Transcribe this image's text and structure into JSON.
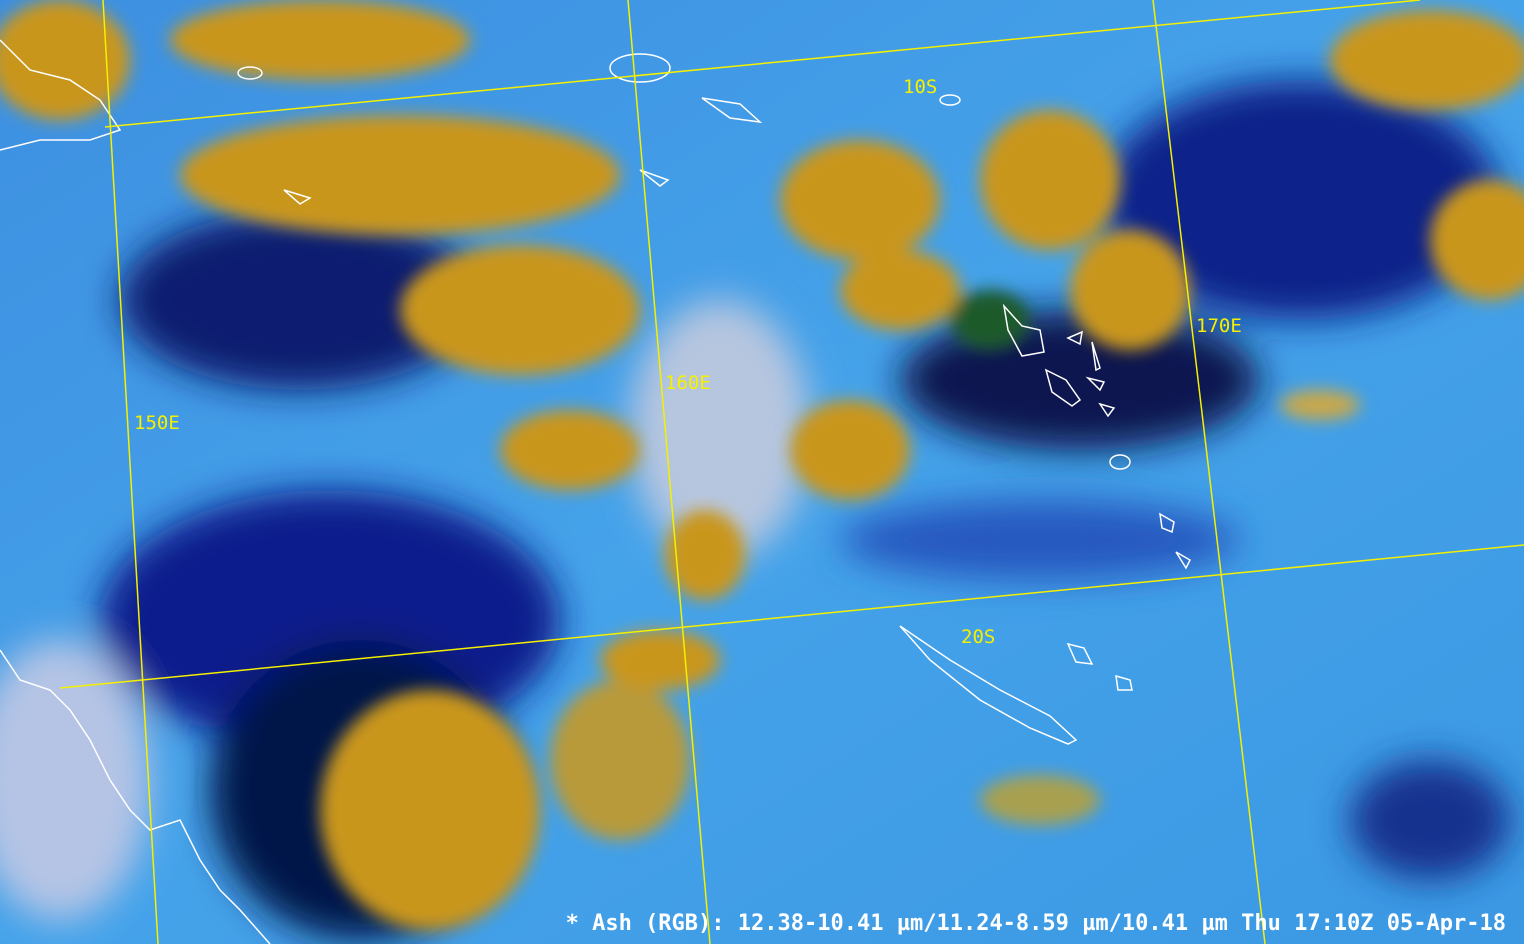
{
  "caption": "* Ash (RGB): 12.38-10.41 µm/11.24-8.59 µm/10.41 µm Thu 17:10Z 05-Apr-18",
  "grid": {
    "lat_labels": [
      "10S",
      "20S"
    ],
    "lon_labels": [
      "150E",
      "160E",
      "170E"
    ],
    "color": "#f5f000"
  },
  "colors": {
    "ocean_clear": "#3a9be8",
    "ice_cloud": "#c9961e",
    "thin_cirrus": "#0a1a8c",
    "coastline": "#ffffff"
  }
}
